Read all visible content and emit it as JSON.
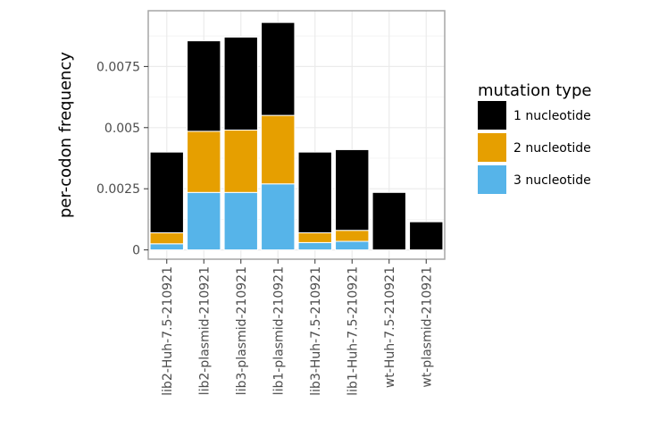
{
  "chart_data": {
    "type": "bar",
    "stacked": true,
    "categories": [
      "lib2-Huh-7.5-210921",
      "lib2-plasmid-210921",
      "lib3-plasmid-210921",
      "lib1-plasmid-210921",
      "lib3-Huh-7.5-210921",
      "lib1-Huh-7.5-210921",
      "wt-Huh-7.5-210921",
      "wt-plasmid-210921"
    ],
    "series": [
      {
        "name": "3 nucleotide",
        "color": "#56B4E9",
        "values": [
          0.00025,
          0.00235,
          0.00235,
          0.0027,
          0.0003,
          0.00035,
          0.0,
          0.0
        ]
      },
      {
        "name": "2 nucleotide",
        "color": "#E69F00",
        "values": [
          0.00045,
          0.0025,
          0.00255,
          0.0028,
          0.0004,
          0.00045,
          0.0,
          0.0
        ]
      },
      {
        "name": "1 nucleotide",
        "color": "#000000",
        "values": [
          0.0033,
          0.0037,
          0.0038,
          0.0038,
          0.0033,
          0.0033,
          0.00235,
          0.00115
        ]
      }
    ],
    "title": "",
    "xlabel": "",
    "ylabel": "per-codon frequency",
    "ylim": [
      -0.00038,
      0.00978
    ],
    "yticks": [
      0,
      0.0025,
      0.005,
      0.0075
    ],
    "ytick_labels": [
      "0",
      "0.0025",
      "0.005",
      "0.0075"
    ],
    "legend": {
      "title": "mutation type",
      "position": "right",
      "order": [
        "1 nucleotide",
        "2 nucleotide",
        "3 nucleotide"
      ]
    },
    "grid": true
  }
}
